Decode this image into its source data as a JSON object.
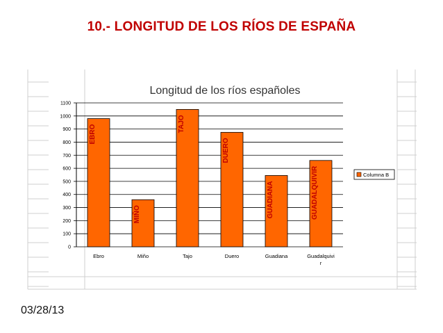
{
  "slide": {
    "title": "10.- LONGITUD DE LOS RÍOS DE ESPAÑA",
    "date": "03/28/13"
  },
  "colors": {
    "title": "#c00000",
    "bar": "#ff6600",
    "bar_stroke": "#000000",
    "bar_label": "#c00000",
    "grid": "#000000",
    "spreadsheet_grid": "#cfcfcf"
  },
  "chart_data": {
    "type": "bar",
    "title": "Longitud de los ríos españoles",
    "categories": [
      "Ebro",
      "Miño",
      "Tajo",
      "Duero",
      "Guadiana",
      "Guadalquivir"
    ],
    "category_labels": [
      [
        "Ebro"
      ],
      [
        "Miño"
      ],
      [
        "Tajo"
      ],
      [
        "Duero"
      ],
      [
        "Guadiana"
      ],
      [
        "Guadalquivi",
        "r"
      ]
    ],
    "series": [
      {
        "name": "Columna B",
        "values": [
          980,
          360,
          1050,
          875,
          545,
          660
        ]
      }
    ],
    "bar_labels": [
      "EBRO",
      "MIÑO",
      "TAJO",
      "DUERO",
      "GUADIANA",
      "GUADALQUIVIR"
    ],
    "yticks": [
      0,
      100,
      200,
      300,
      400,
      500,
      600,
      700,
      800,
      900,
      1000,
      1100
    ],
    "ylim": [
      0,
      1100
    ],
    "grid": true,
    "legend_position": "right"
  }
}
